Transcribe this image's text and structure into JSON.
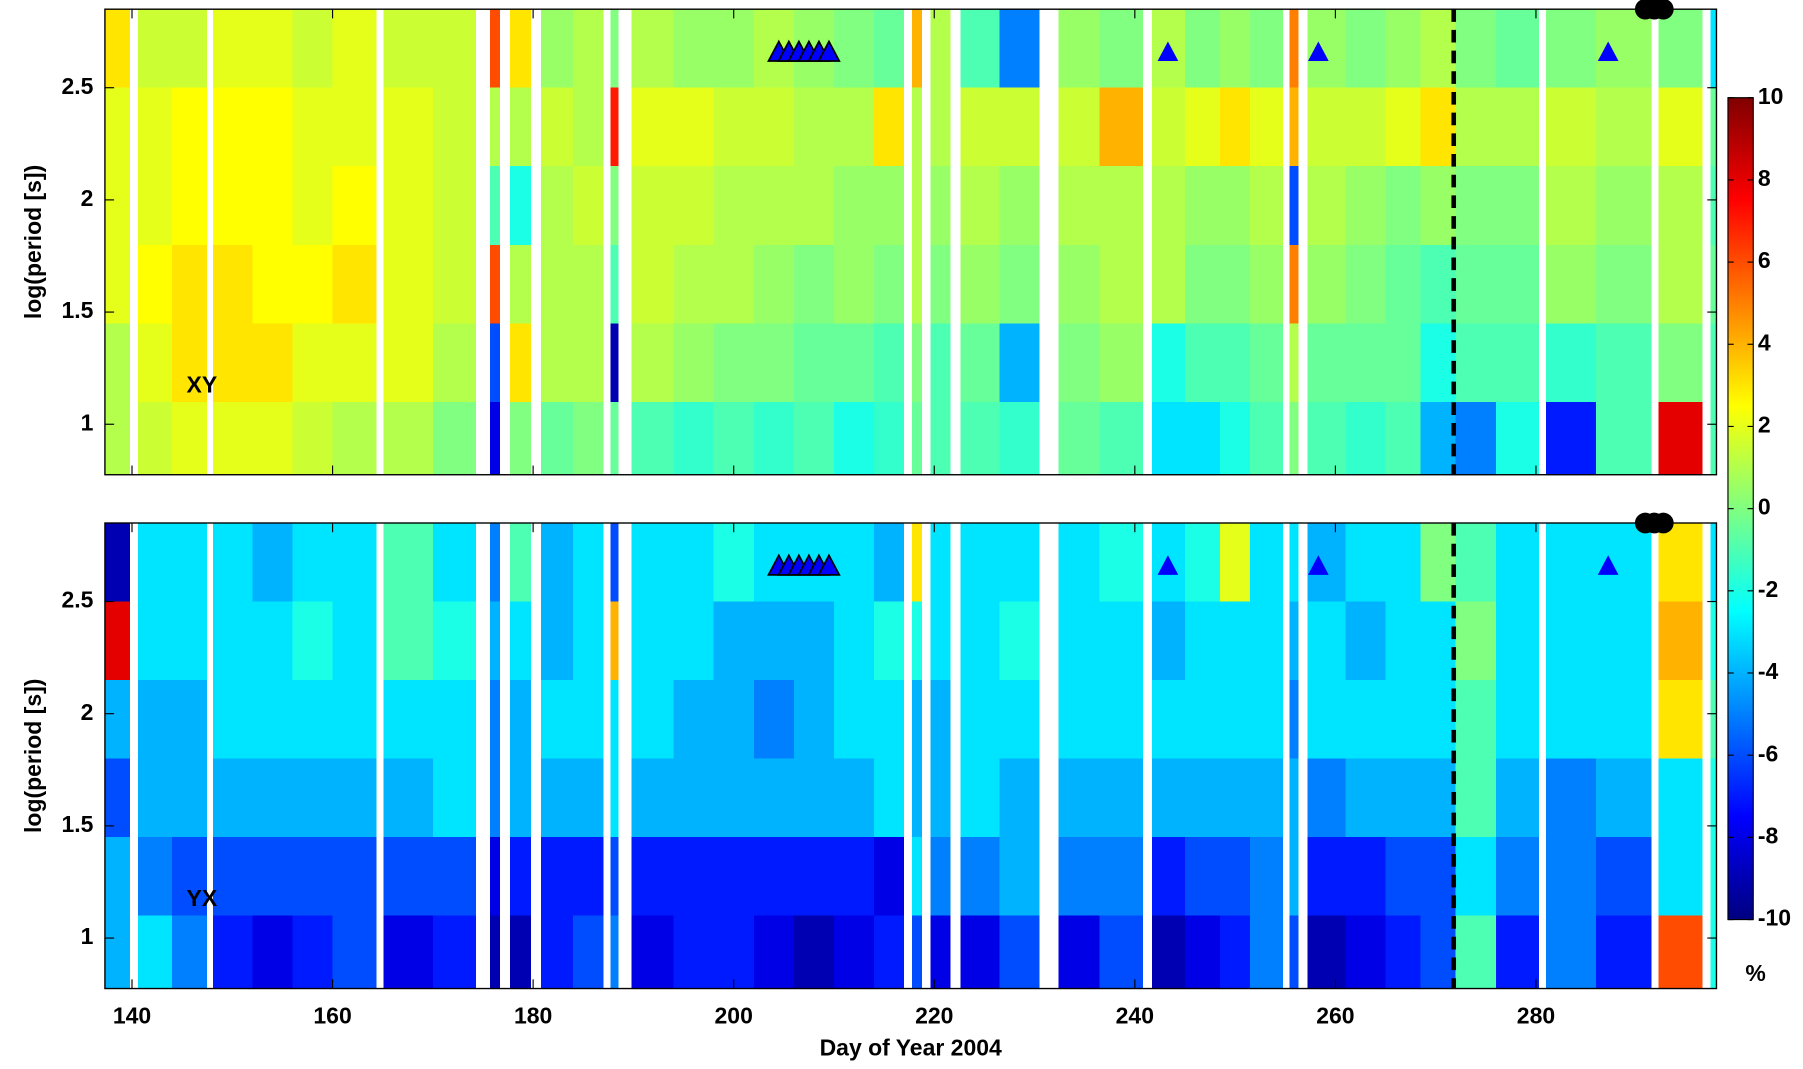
{
  "chart_data": [
    {
      "type": "heatmap",
      "annotation": "XY",
      "ylabel": "log(period [s])",
      "x_edges": [
        137.3,
        139.8,
        140.6,
        144,
        147.5,
        148.1,
        152,
        156,
        160,
        164.4,
        165.1,
        170,
        174.3,
        175.7,
        176.7,
        177.7,
        179.8,
        180.8,
        184,
        187,
        187.7,
        188.5,
        189.8,
        194,
        198,
        202,
        206,
        210,
        214,
        217,
        217.8,
        218.8,
        219.6,
        221.6,
        222.6,
        226.5,
        230.5,
        232.4,
        236.5,
        240.8,
        241.7,
        245,
        248.5,
        251.5,
        254.8,
        255.4,
        256.3,
        257.2,
        261,
        265,
        268.5,
        272,
        276,
        280.3,
        281,
        286,
        291.5,
        292.2,
        296.6,
        297.4,
        298
      ],
      "y_edges": [
        0.775,
        1.1,
        1.45,
        1.8,
        2.15,
        2.5,
        2.85
      ],
      "values": [
        [
          1,
          null,
          1.5,
          2,
          null,
          2,
          2,
          1.5,
          1,
          null,
          1,
          0,
          null,
          -8,
          null,
          0,
          null,
          -0.5,
          0,
          null,
          -0.5,
          null,
          -1,
          -1.5,
          -1,
          -1.5,
          -1,
          -2,
          -1.5,
          null,
          -0.5,
          null,
          -1,
          null,
          -1,
          -1.5,
          null,
          -0.5,
          -1,
          null,
          -3,
          -3,
          -2,
          -1,
          null,
          0,
          null,
          -1,
          -1.5,
          -1,
          -4,
          -5,
          -2,
          null,
          -7,
          -1,
          null,
          8,
          null,
          -1
        ],
        [
          1,
          null,
          2,
          3,
          null,
          3,
          3,
          2,
          2,
          null,
          2,
          1,
          null,
          -6,
          null,
          3,
          null,
          1,
          1,
          null,
          -9,
          null,
          1,
          0.5,
          0,
          0,
          -0.5,
          -0.5,
          -1,
          null,
          0,
          null,
          -1,
          null,
          -0.5,
          -4,
          null,
          0,
          0.5,
          null,
          -2,
          -1,
          -1,
          -0.5,
          null,
          1,
          null,
          -0.5,
          -0.5,
          -0.5,
          -2,
          -1,
          -1,
          null,
          -1.5,
          -1,
          null,
          0,
          null,
          -1
        ],
        [
          2,
          null,
          2.5,
          3,
          null,
          3,
          2.5,
          2.5,
          3,
          null,
          2,
          1.5,
          null,
          6,
          null,
          1,
          null,
          1,
          1,
          null,
          -1,
          null,
          1.5,
          1,
          1,
          0.5,
          0,
          0.5,
          0,
          null,
          1,
          null,
          0,
          null,
          0.5,
          0,
          null,
          0.5,
          1,
          null,
          1,
          0,
          0,
          0.5,
          null,
          5,
          null,
          0.5,
          0,
          -0.5,
          -1,
          -0.5,
          -0.5,
          null,
          0.5,
          0,
          null,
          1,
          null,
          -0.5
        ],
        [
          2,
          null,
          2,
          2.5,
          null,
          2.5,
          2.5,
          2,
          2.5,
          null,
          2,
          1.5,
          null,
          -1,
          null,
          -2,
          null,
          1,
          1.5,
          null,
          0,
          null,
          1.5,
          1.5,
          1,
          1,
          1,
          0.5,
          0.5,
          null,
          1,
          null,
          0.5,
          null,
          1,
          0.5,
          null,
          1,
          1,
          null,
          1,
          0.5,
          0.5,
          1,
          null,
          -6,
          null,
          1,
          0.5,
          0,
          0.5,
          0,
          0,
          null,
          1,
          0.5,
          null,
          1,
          null,
          -1
        ],
        [
          2,
          null,
          2,
          2.5,
          null,
          2.5,
          2.5,
          2,
          2,
          null,
          2,
          1.5,
          null,
          1,
          null,
          1,
          null,
          1.5,
          1,
          null,
          7,
          null,
          2,
          2,
          1.5,
          1.5,
          1,
          1,
          3,
          null,
          1,
          null,
          1,
          null,
          1.5,
          1.5,
          null,
          1.5,
          4,
          null,
          1.5,
          2,
          3,
          2,
          null,
          4,
          null,
          1.5,
          1.5,
          2,
          3,
          1,
          1,
          null,
          1.5,
          1,
          null,
          2,
          null,
          -0.5
        ],
        [
          3,
          null,
          1.5,
          1.5,
          null,
          2,
          2,
          1.5,
          2,
          null,
          1.5,
          1.5,
          null,
          6,
          null,
          3,
          null,
          0.5,
          1,
          null,
          0,
          null,
          1,
          0.5,
          0.5,
          1,
          0.5,
          0,
          -0.5,
          null,
          4,
          null,
          1,
          null,
          -1,
          -5,
          null,
          0.5,
          0,
          null,
          1,
          0,
          0.5,
          0,
          null,
          5,
          null,
          0.5,
          0,
          0.5,
          1,
          0,
          -0.5,
          null,
          0,
          0.5,
          null,
          0,
          null,
          -3
        ]
      ],
      "xlim": [
        137.3,
        298
      ],
      "ylim": [
        0.775,
        2.85
      ],
      "yticks": [
        1,
        1.5,
        2,
        2.5
      ],
      "triangles": {
        "x": [
          204.5,
          205.5,
          206.5,
          207.5,
          208.5,
          209.5,
          243.3,
          258.3,
          287.2
        ],
        "y": 2.66,
        "color": "#0000ff"
      },
      "circles": {
        "x": [
          290.9,
          291.8,
          292.7
        ],
        "y": 2.85,
        "color": "#000000"
      },
      "event_day": 271.8,
      "clim": [
        -10,
        10
      ],
      "cticks": [
        -10,
        -8,
        -6,
        -4,
        -2,
        0,
        2,
        4,
        6,
        8,
        10
      ],
      "clabel": "%"
    },
    {
      "type": "heatmap",
      "annotation": "YX",
      "ylabel": "log(period [s])",
      "xlabel": "Day of Year 2004",
      "x_edges": [
        137.3,
        139.8,
        140.6,
        144,
        147.5,
        148.1,
        152,
        156,
        160,
        164.4,
        165.1,
        170,
        174.3,
        175.7,
        176.7,
        177.7,
        179.8,
        180.8,
        184,
        187,
        187.7,
        188.5,
        189.8,
        194,
        198,
        202,
        206,
        210,
        214,
        217,
        217.8,
        218.8,
        219.6,
        221.6,
        222.6,
        226.5,
        230.5,
        232.4,
        236.5,
        240.8,
        241.7,
        245,
        248.5,
        251.5,
        254.8,
        255.4,
        256.3,
        257.2,
        261,
        265,
        268.5,
        272,
        276,
        280.3,
        281,
        286,
        291.5,
        292.2,
        296.6,
        297.4,
        298
      ],
      "y_edges": [
        0.775,
        1.1,
        1.45,
        1.8,
        2.15,
        2.5,
        2.85
      ],
      "values": [
        [
          -4,
          null,
          -3,
          -5,
          null,
          -7,
          -8,
          -7,
          -6,
          null,
          -8,
          -7,
          null,
          -9,
          null,
          -9,
          null,
          -7,
          -6,
          null,
          -5,
          null,
          -8,
          -7,
          -7,
          -8,
          -9,
          -8,
          -7,
          null,
          -6,
          null,
          -8,
          null,
          -8,
          -6,
          null,
          -8,
          -6,
          null,
          -9,
          -8,
          -7,
          -5,
          null,
          -6,
          null,
          -9,
          -8,
          -7,
          -6,
          -1,
          -7,
          null,
          -5,
          -7,
          null,
          6,
          null,
          -2
        ],
        [
          -4,
          null,
          -5,
          -6,
          null,
          -6,
          -6,
          -6,
          -6,
          null,
          -6,
          -6,
          null,
          -8,
          null,
          -7,
          null,
          -7,
          -7,
          null,
          -6,
          null,
          -7,
          -7,
          -7,
          -7,
          -7,
          -7,
          -8,
          null,
          -3,
          null,
          -5,
          null,
          -5,
          -4,
          null,
          -5,
          -5,
          null,
          -7,
          -6,
          -6,
          -5,
          null,
          -4,
          null,
          -7,
          -7,
          -6,
          -6,
          -3,
          -5,
          null,
          -5,
          -6,
          null,
          -3,
          null,
          -2
        ],
        [
          -6,
          null,
          -4,
          -4,
          null,
          -4,
          -4,
          -4,
          -4,
          null,
          -4,
          -3,
          null,
          -5,
          null,
          -4,
          null,
          -4,
          -4,
          null,
          -3,
          null,
          -4,
          -4,
          -4,
          -4,
          -4,
          -4,
          -3,
          null,
          -4,
          null,
          -4,
          null,
          -3,
          -4,
          null,
          -4,
          -4,
          null,
          -4,
          -4,
          -4,
          -4,
          null,
          -4,
          null,
          -5,
          -4,
          -4,
          -4,
          -1,
          -4,
          null,
          -5,
          -4,
          null,
          -3,
          null,
          -2
        ],
        [
          -4,
          null,
          -4,
          -4,
          null,
          -3,
          -3,
          -3,
          -3,
          null,
          -3,
          -3,
          null,
          -5,
          null,
          -4,
          null,
          -3,
          -3,
          null,
          -3,
          null,
          -3,
          -4,
          -4,
          -5,
          -4,
          -3,
          -3,
          null,
          -4,
          null,
          -4,
          null,
          -3,
          -3,
          null,
          -3,
          -3,
          null,
          -3,
          -3,
          -3,
          -3,
          null,
          -5,
          null,
          -3,
          -3,
          -3,
          -3,
          -1,
          -3,
          null,
          -3,
          -3,
          null,
          3,
          null,
          -1
        ],
        [
          8,
          null,
          -3,
          -3,
          null,
          -3,
          -3,
          -2,
          -3,
          null,
          -1,
          -2,
          null,
          -4,
          null,
          -3,
          null,
          -4,
          -3,
          null,
          4,
          null,
          -3,
          -3,
          -4,
          -4,
          -4,
          -3,
          -2,
          null,
          -2,
          null,
          -3,
          null,
          -3,
          -2,
          null,
          -3,
          -3,
          null,
          -4,
          -3,
          -3,
          -3,
          null,
          -4,
          null,
          -3,
          -4,
          -3,
          -3,
          0,
          -3,
          null,
          -3,
          -3,
          null,
          4,
          null,
          -2
        ],
        [
          -9,
          null,
          -3,
          -3,
          null,
          -3,
          -4,
          -3,
          -3,
          null,
          -1,
          -3,
          null,
          -5,
          null,
          -1,
          null,
          -4,
          -3,
          null,
          -6,
          null,
          -3,
          -3,
          -2,
          -3,
          -3,
          -3,
          -4,
          null,
          3,
          null,
          -3,
          null,
          -3,
          -3,
          null,
          -3,
          -2,
          null,
          -3,
          -2,
          2,
          -3,
          null,
          -3,
          null,
          -4,
          -3,
          -3,
          0,
          -1,
          -3,
          null,
          -3,
          -3,
          null,
          3,
          null,
          -3
        ]
      ],
      "xlim": [
        137.3,
        298
      ],
      "ylim": [
        0.775,
        2.85
      ],
      "xticks": [
        140,
        160,
        180,
        200,
        220,
        240,
        260,
        280
      ],
      "yticks": [
        1,
        1.5,
        2,
        2.5
      ],
      "triangles": {
        "x": [
          204.5,
          205.5,
          206.5,
          207.5,
          208.5,
          209.5,
          243.3,
          258.3,
          287.2
        ],
        "y": 2.66,
        "color": "#0000ff"
      },
      "circles": {
        "x": [
          290.9,
          291.8,
          292.7
        ],
        "y": 2.85,
        "color": "#000000"
      },
      "event_day": 271.8
    }
  ]
}
